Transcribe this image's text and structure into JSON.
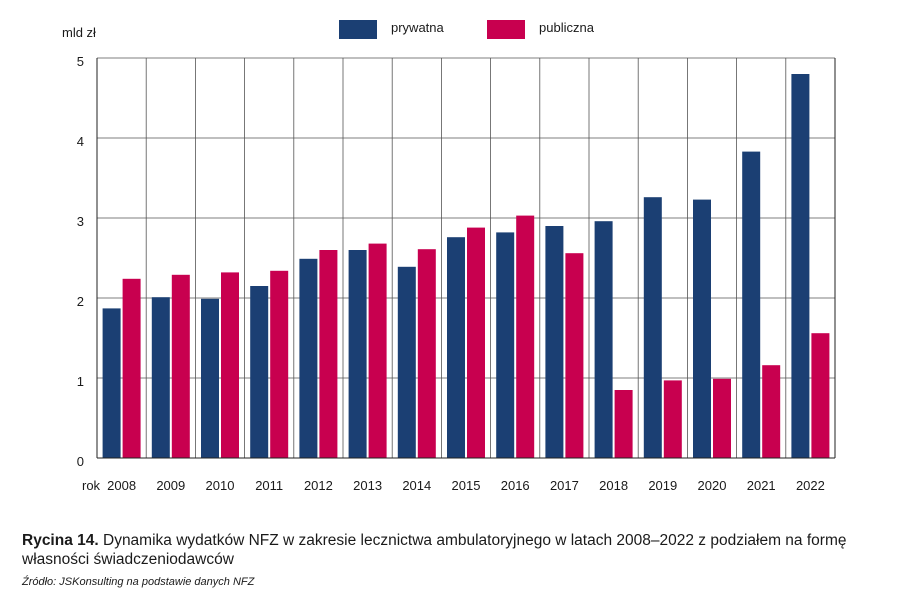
{
  "chart_data": {
    "type": "bar",
    "ylabel": "mld zł",
    "xlabel": "rok",
    "ylim": [
      0,
      5
    ],
    "yticks": [
      0,
      1,
      2,
      3,
      4,
      5
    ],
    "grid": true,
    "legend_position": "top-center",
    "categories": [
      "2008",
      "2009",
      "2010",
      "2011",
      "2012",
      "2013",
      "2014",
      "2015",
      "2016",
      "2017",
      "2018",
      "2019",
      "2020",
      "2021",
      "2022"
    ],
    "series": [
      {
        "name": "prywatna",
        "color": "#1b3f73",
        "values": [
          1.87,
          2.01,
          1.99,
          2.15,
          2.49,
          2.6,
          2.39,
          2.76,
          2.82,
          2.9,
          2.96,
          3.26,
          3.23,
          3.83,
          4.8
        ]
      },
      {
        "name": "publiczna",
        "color": "#c8004f",
        "values": [
          2.24,
          2.29,
          2.32,
          2.34,
          2.6,
          2.68,
          2.61,
          2.88,
          3.03,
          2.56,
          0.85,
          0.97,
          0.99,
          1.16,
          1.56
        ]
      }
    ]
  },
  "caption": {
    "label": "Rycina 14.",
    "text": " Dynamika wydatków NFZ w zakresie lecznictwa ambulatoryjnego w latach 2008–2022 z podziałem na formę własności świadczeniodawców"
  },
  "source": "Źródło: JSKonsulting na podstawie danych NFZ"
}
